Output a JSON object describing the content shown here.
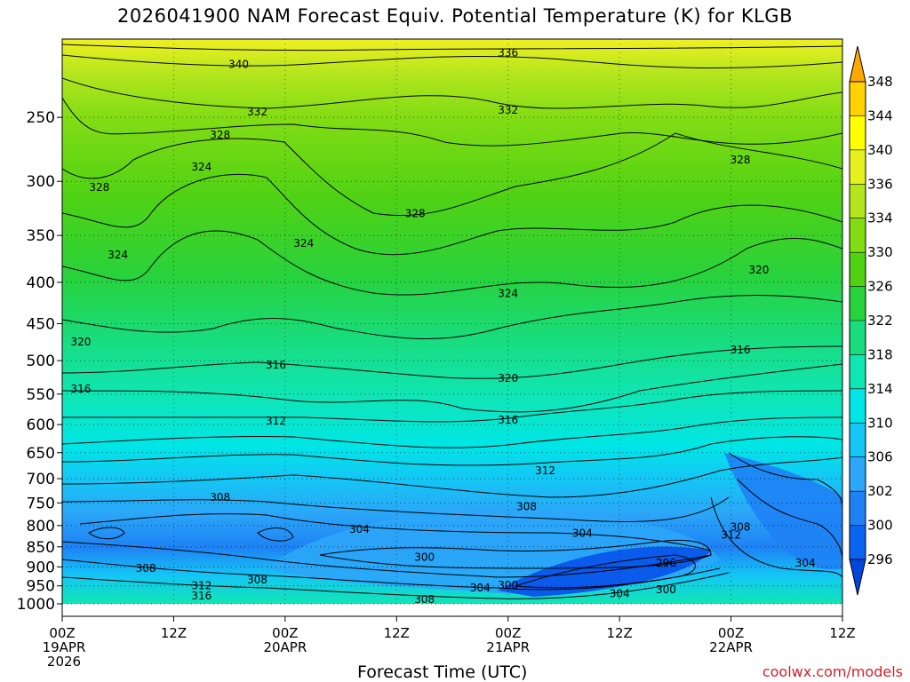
{
  "title": "2026041900 NAM Forecast Equiv. Potential Temperature (K) for KLGB",
  "xaxis_title": "Forecast Time (UTC)",
  "credit": "coolwx.com/models",
  "colors": {
    "ground": "#a0522d",
    "credit": "#d4202a"
  },
  "chart_data": {
    "type": "heatmap",
    "title": "2026041900 NAM Forecast Equiv. Potential Temperature (K) for KLGB",
    "xlabel": "Forecast Time (UTC)",
    "ylabel": "",
    "x_ticks": [
      {
        "hour": 0,
        "lines": [
          "00Z",
          "19APR",
          "2026"
        ]
      },
      {
        "hour": 12,
        "lines": [
          "12Z"
        ]
      },
      {
        "hour": 24,
        "lines": [
          "00Z",
          "20APR"
        ]
      },
      {
        "hour": 36,
        "lines": [
          "12Z"
        ]
      },
      {
        "hour": 48,
        "lines": [
          "00Z",
          "21APR"
        ]
      },
      {
        "hour": 60,
        "lines": [
          "12Z"
        ]
      },
      {
        "hour": 72,
        "lines": [
          "00Z",
          "22APR"
        ]
      },
      {
        "hour": 84,
        "lines": [
          "12Z"
        ]
      }
    ],
    "x_range_hours": [
      0,
      84
    ],
    "y_scale": "log-pressure",
    "y_range_hpa": [
      1000,
      200
    ],
    "y_ticks_hpa": [
      250,
      300,
      350,
      400,
      450,
      500,
      550,
      600,
      650,
      700,
      750,
      800,
      850,
      900,
      950,
      1000
    ],
    "gridlines": "dotted",
    "colorbar": {
      "levels": [
        296,
        300,
        302,
        306,
        310,
        314,
        318,
        322,
        326,
        330,
        334,
        336,
        340,
        344,
        348
      ],
      "colors": [
        "#0046dc",
        "#0a64f0",
        "#1e82f5",
        "#2ba6f8",
        "#14c6f5",
        "#00e6e6",
        "#10e6b4",
        "#19dc7d",
        "#28d23c",
        "#50d214",
        "#82dc14",
        "#b4e61e",
        "#e6f01e",
        "#ffff00",
        "#ffd200",
        "#ffa800"
      ]
    },
    "contour_labels": [
      {
        "value": "336",
        "hour": 48,
        "hpa": 208
      },
      {
        "value": "340",
        "hour": 19,
        "hpa": 215
      },
      {
        "value": "332",
        "hour": 21,
        "hpa": 246
      },
      {
        "value": "332",
        "hour": 48,
        "hpa": 245
      },
      {
        "value": "328",
        "hour": 17,
        "hpa": 263
      },
      {
        "value": "328",
        "hour": 4,
        "hpa": 305
      },
      {
        "value": "328",
        "hour": 38,
        "hpa": 329
      },
      {
        "value": "328",
        "hour": 73,
        "hpa": 282
      },
      {
        "value": "324",
        "hour": 15,
        "hpa": 288
      },
      {
        "value": "324",
        "hour": 6,
        "hpa": 370
      },
      {
        "value": "324",
        "hour": 26,
        "hpa": 358
      },
      {
        "value": "324",
        "hour": 48,
        "hpa": 413
      },
      {
        "value": "320",
        "hour": 2,
        "hpa": 474
      },
      {
        "value": "320",
        "hour": 48,
        "hpa": 526
      },
      {
        "value": "320",
        "hour": 75,
        "hpa": 386
      },
      {
        "value": "316",
        "hour": 2,
        "hpa": 542
      },
      {
        "value": "316",
        "hour": 23,
        "hpa": 506
      },
      {
        "value": "316",
        "hour": 48,
        "hpa": 592
      },
      {
        "value": "316",
        "hour": 73,
        "hpa": 485
      },
      {
        "value": "312",
        "hour": 23,
        "hpa": 594
      },
      {
        "value": "312",
        "hour": 52,
        "hpa": 684
      },
      {
        "value": "312",
        "hour": 72,
        "hpa": 822
      },
      {
        "value": "308",
        "hour": 17,
        "hpa": 738
      },
      {
        "value": "308",
        "hour": 50,
        "hpa": 758
      },
      {
        "value": "308",
        "hour": 73,
        "hpa": 803
      },
      {
        "value": "308",
        "hour": 9,
        "hpa": 904
      },
      {
        "value": "308",
        "hour": 21,
        "hpa": 934
      },
      {
        "value": "308",
        "hour": 39,
        "hpa": 988
      },
      {
        "value": "304",
        "hour": 32,
        "hpa": 808
      },
      {
        "value": "304",
        "hour": 56,
        "hpa": 818
      },
      {
        "value": "304",
        "hour": 45,
        "hpa": 955
      },
      {
        "value": "304",
        "hour": 60,
        "hpa": 971
      },
      {
        "value": "304",
        "hour": 80,
        "hpa": 890
      },
      {
        "value": "300",
        "hour": 39,
        "hpa": 876
      },
      {
        "value": "300",
        "hour": 48,
        "hpa": 948
      },
      {
        "value": "300",
        "hour": 65,
        "hpa": 960
      },
      {
        "value": "296",
        "hour": 65,
        "hpa": 890
      },
      {
        "value": "312",
        "hour": 15,
        "hpa": 950
      },
      {
        "value": "316",
        "hour": 15,
        "hpa": 977
      }
    ]
  }
}
